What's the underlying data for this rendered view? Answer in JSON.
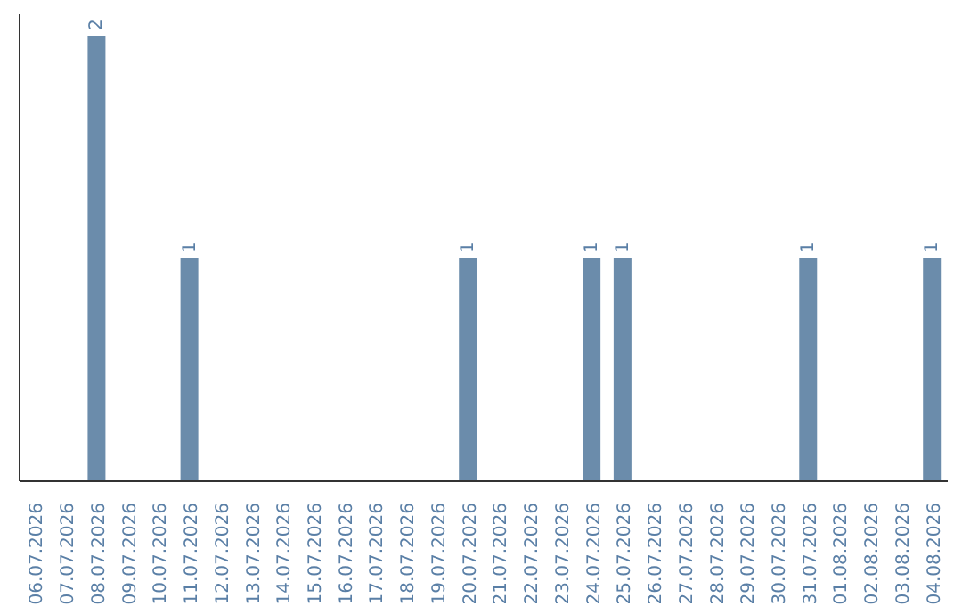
{
  "chart_data": {
    "type": "bar",
    "categories": [
      "06.07.2026",
      "07.07.2026",
      "08.07.2026",
      "09.07.2026",
      "10.07.2026",
      "11.07.2026",
      "12.07.2026",
      "13.07.2026",
      "14.07.2026",
      "15.07.2026",
      "16.07.2026",
      "17.07.2026",
      "18.07.2026",
      "19.07.2026",
      "20.07.2026",
      "21.07.2026",
      "22.07.2026",
      "23.07.2026",
      "24.07.2026",
      "25.07.2026",
      "26.07.2026",
      "27.07.2026",
      "28.07.2026",
      "29.07.2026",
      "30.07.2026",
      "31.07.2026",
      "01.08.2026",
      "02.08.2026",
      "03.08.2026",
      "04.08.2026"
    ],
    "values": [
      0,
      0,
      2,
      0,
      0,
      1,
      0,
      0,
      0,
      0,
      0,
      0,
      0,
      0,
      1,
      0,
      0,
      0,
      1,
      1,
      0,
      0,
      0,
      0,
      0,
      1,
      0,
      0,
      0,
      1
    ],
    "value_labels": [
      null,
      null,
      "2",
      null,
      null,
      "1",
      null,
      null,
      null,
      null,
      null,
      null,
      null,
      null,
      "1",
      null,
      null,
      null,
      "1",
      "1",
      null,
      null,
      null,
      null,
      null,
      "1",
      null,
      null,
      null,
      "1"
    ],
    "color": "#6b8cab"
  }
}
